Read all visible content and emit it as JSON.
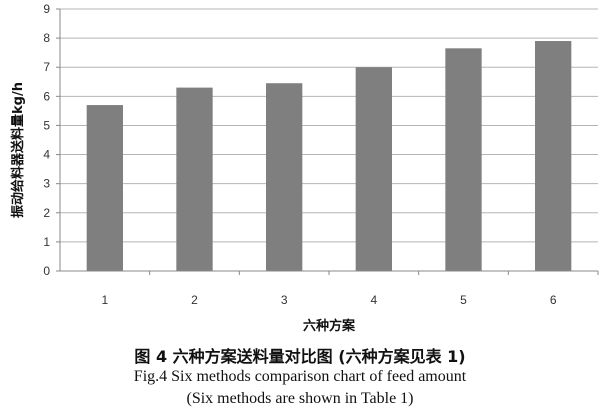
{
  "chart_data": {
    "type": "bar",
    "categories": [
      "1",
      "2",
      "3",
      "4",
      "5",
      "6"
    ],
    "values": [
      5.7,
      6.3,
      6.45,
      7.0,
      7.65,
      7.9
    ],
    "xlabel": "六种方案",
    "ylabel": "振动给料器送料量kg/h",
    "ylim": [
      0,
      9
    ],
    "yticks": [
      "0",
      "1",
      "2",
      "3",
      "4",
      "5",
      "6",
      "7",
      "8",
      "9"
    ],
    "grid": true,
    "bar_color": "#7f7f7f"
  },
  "captions": {
    "cn": "图 4 六种方案送料量对比图 (六种方案见表 1)",
    "en_line1": "Fig.4 Six methods comparison chart of feed amount",
    "en_line2": "(Six methods are shown in Table 1)"
  }
}
